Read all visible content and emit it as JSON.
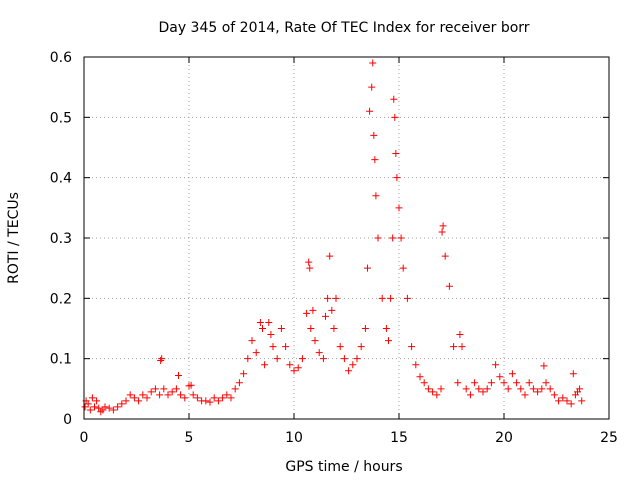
{
  "chart_data": {
    "type": "scatter",
    "title": "Day 345 of 2014, Rate Of TEC Index for receiver borr",
    "xlabel": "GPS time / hours",
    "ylabel": "ROTI / TECUs",
    "xlim": [
      0,
      25
    ],
    "ylim": [
      0,
      0.6
    ],
    "xticks": [
      0,
      5,
      10,
      15,
      20,
      25
    ],
    "xtick_labels": [
      "0",
      "5",
      "10",
      "15",
      "20",
      "25"
    ],
    "yticks": [
      0,
      0.1,
      0.2,
      0.3,
      0.4,
      0.5,
      0.6
    ],
    "ytick_labels": [
      "0",
      "0.1",
      "0.2",
      "0.3",
      "0.4",
      "0.5",
      "0.6"
    ],
    "grid": true,
    "marker": "+",
    "color": "#ff0000",
    "series": [
      {
        "name": "ROTI",
        "x": [
          0.05,
          0.1,
          0.2,
          0.3,
          0.4,
          0.5,
          0.6,
          0.7,
          0.8,
          0.9,
          1.0,
          1.2,
          1.4,
          1.6,
          1.8,
          2.0,
          2.2,
          2.4,
          2.6,
          2.8,
          3.0,
          3.2,
          3.4,
          3.6,
          3.65,
          3.7,
          3.8,
          4.0,
          4.2,
          4.4,
          4.5,
          4.6,
          4.8,
          5.0,
          5.1,
          5.2,
          5.4,
          5.6,
          5.8,
          6.0,
          6.2,
          6.4,
          6.6,
          6.8,
          7.0,
          7.2,
          7.4,
          7.6,
          7.8,
          8.0,
          8.2,
          8.4,
          8.5,
          8.6,
          8.8,
          8.9,
          9.0,
          9.2,
          9.4,
          9.6,
          9.8,
          10.0,
          10.2,
          10.4,
          10.6,
          10.7,
          10.75,
          10.8,
          10.9,
          11.0,
          11.2,
          11.4,
          11.5,
          11.6,
          11.7,
          11.8,
          11.9,
          12.0,
          12.2,
          12.4,
          12.6,
          12.8,
          13.0,
          13.2,
          13.4,
          13.5,
          13.6,
          13.7,
          13.75,
          13.8,
          13.85,
          13.9,
          14.0,
          14.2,
          14.4,
          14.5,
          14.6,
          14.7,
          14.75,
          14.8,
          14.85,
          14.9,
          15.0,
          15.1,
          15.2,
          15.4,
          15.6,
          15.8,
          16.0,
          16.2,
          16.4,
          16.6,
          16.8,
          17.0,
          17.05,
          17.1,
          17.2,
          17.4,
          17.6,
          17.8,
          17.9,
          18.0,
          18.2,
          18.4,
          18.6,
          18.8,
          19.0,
          19.2,
          19.4,
          19.6,
          19.8,
          20.0,
          20.2,
          20.4,
          20.6,
          20.8,
          21.0,
          21.2,
          21.4,
          21.6,
          21.8,
          21.9,
          22.0,
          22.2,
          22.4,
          22.6,
          22.8,
          23.0,
          23.2,
          23.3,
          23.4,
          23.5,
          23.6,
          23.7
        ],
        "y": [
          0.02,
          0.03,
          0.025,
          0.015,
          0.035,
          0.02,
          0.03,
          0.018,
          0.012,
          0.015,
          0.02,
          0.018,
          0.015,
          0.02,
          0.025,
          0.03,
          0.04,
          0.035,
          0.03,
          0.04,
          0.035,
          0.045,
          0.05,
          0.04,
          0.097,
          0.1,
          0.05,
          0.04,
          0.045,
          0.05,
          0.072,
          0.04,
          0.035,
          0.055,
          0.056,
          0.04,
          0.035,
          0.03,
          0.03,
          0.028,
          0.035,
          0.03,
          0.035,
          0.04,
          0.035,
          0.05,
          0.06,
          0.075,
          0.1,
          0.13,
          0.11,
          0.16,
          0.15,
          0.09,
          0.16,
          0.14,
          0.12,
          0.1,
          0.15,
          0.12,
          0.09,
          0.08,
          0.085,
          0.1,
          0.175,
          0.26,
          0.25,
          0.15,
          0.18,
          0.13,
          0.11,
          0.1,
          0.17,
          0.2,
          0.27,
          0.18,
          0.15,
          0.2,
          0.12,
          0.1,
          0.08,
          0.09,
          0.1,
          0.12,
          0.15,
          0.25,
          0.51,
          0.55,
          0.59,
          0.47,
          0.43,
          0.37,
          0.3,
          0.2,
          0.15,
          0.13,
          0.2,
          0.3,
          0.53,
          0.5,
          0.44,
          0.4,
          0.35,
          0.3,
          0.25,
          0.2,
          0.12,
          0.09,
          0.07,
          0.06,
          0.05,
          0.045,
          0.04,
          0.05,
          0.31,
          0.32,
          0.27,
          0.22,
          0.12,
          0.06,
          0.14,
          0.12,
          0.05,
          0.04,
          0.06,
          0.05,
          0.045,
          0.05,
          0.06,
          0.09,
          0.07,
          0.06,
          0.05,
          0.075,
          0.06,
          0.05,
          0.04,
          0.06,
          0.05,
          0.045,
          0.05,
          0.088,
          0.06,
          0.05,
          0.04,
          0.03,
          0.035,
          0.03,
          0.025,
          0.075,
          0.04,
          0.045,
          0.05,
          0.03
        ]
      }
    ]
  }
}
